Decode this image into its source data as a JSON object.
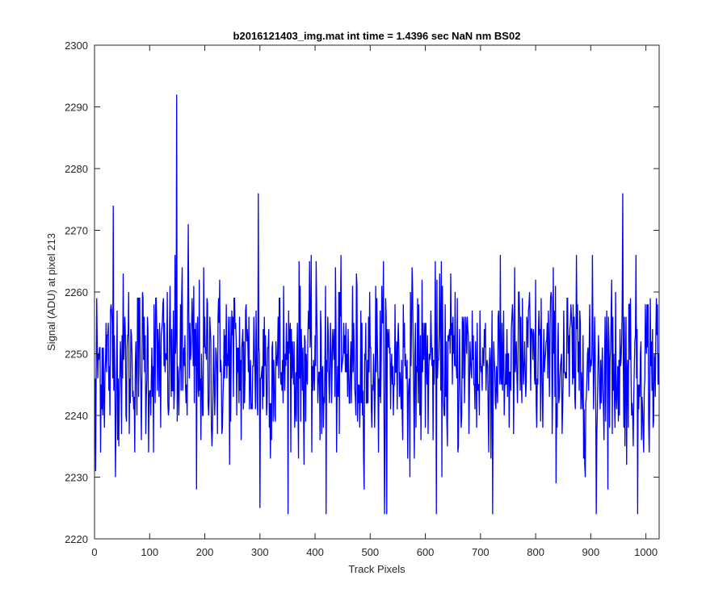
{
  "chart_data": {
    "type": "line",
    "title": "b2016121403_img.mat int time = 1.4396 sec  NaN nm BS02",
    "xlabel": "Track Pixels",
    "ylabel": "Signal (ADU) at pixel 213",
    "xlim": [
      0,
      1024
    ],
    "ylim": [
      2220,
      2300
    ],
    "xticks": [
      0,
      100,
      200,
      300,
      400,
      500,
      600,
      700,
      800,
      900,
      1000
    ],
    "yticks": [
      2220,
      2230,
      2240,
      2250,
      2260,
      2270,
      2280,
      2290,
      2300
    ],
    "grid": false,
    "series": [
      {
        "color": "#0000ff",
        "x_start": 1,
        "x_step": 1,
        "noise_mean": 2248.5,
        "noise_std": 7.2,
        "noise_min": 2224,
        "noise_max": 2266,
        "notable_points": [
          {
            "x": 2,
            "y": 2231
          },
          {
            "x": 34,
            "y": 2274
          },
          {
            "x": 149,
            "y": 2292
          },
          {
            "x": 170,
            "y": 2271
          },
          {
            "x": 185,
            "y": 2228
          },
          {
            "x": 297,
            "y": 2276
          },
          {
            "x": 300,
            "y": 2225
          },
          {
            "x": 420,
            "y": 2224
          },
          {
            "x": 530,
            "y": 2224
          },
          {
            "x": 620,
            "y": 2224
          },
          {
            "x": 722,
            "y": 2224
          },
          {
            "x": 910,
            "y": 2224
          },
          {
            "x": 958,
            "y": 2276
          },
          {
            "x": 985,
            "y": 2224
          }
        ]
      }
    ]
  }
}
